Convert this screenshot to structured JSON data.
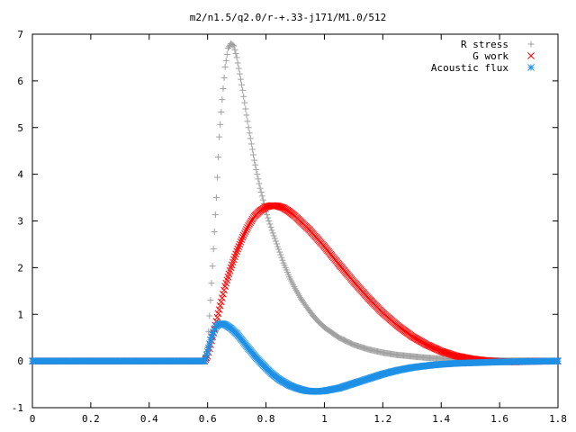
{
  "chart_data": {
    "type": "scatter",
    "title": "m2/n1.5/q2.0/r-+.33-j171/M1.0/512",
    "xlabel": "",
    "ylabel": "",
    "xlim": [
      0,
      1.8
    ],
    "ylim": [
      -1,
      7
    ],
    "x_ticks": [
      "0",
      "0.2",
      "0.4",
      "0.6",
      "0.8",
      "1",
      "1.2",
      "1.4",
      "1.6",
      "1.8"
    ],
    "y_ticks": [
      "-1",
      "0",
      "1",
      "2",
      "3",
      "4",
      "5",
      "6",
      "7"
    ],
    "grid": false,
    "legend_position": "top-right",
    "series": [
      {
        "name": "R stress",
        "marker": "+",
        "color": "#a0a0a0",
        "points": [
          [
            0,
            0
          ],
          [
            0.2,
            0
          ],
          [
            0.4,
            0
          ],
          [
            0.59,
            0
          ],
          [
            0.6,
            0.3
          ],
          [
            0.61,
            1.3
          ],
          [
            0.62,
            2.4
          ],
          [
            0.63,
            3.5
          ],
          [
            0.64,
            4.8
          ],
          [
            0.65,
            5.6
          ],
          [
            0.66,
            6.3
          ],
          [
            0.67,
            6.7
          ],
          [
            0.68,
            6.8
          ],
          [
            0.69,
            6.75
          ],
          [
            0.7,
            6.5
          ],
          [
            0.72,
            5.8
          ],
          [
            0.74,
            5.0
          ],
          [
            0.76,
            4.3
          ],
          [
            0.78,
            3.7
          ],
          [
            0.8,
            3.2
          ],
          [
            0.82,
            2.8
          ],
          [
            0.84,
            2.45
          ],
          [
            0.86,
            2.1
          ],
          [
            0.88,
            1.8
          ],
          [
            0.9,
            1.55
          ],
          [
            0.92,
            1.33
          ],
          [
            0.94,
            1.15
          ],
          [
            0.96,
            0.98
          ],
          [
            0.98,
            0.84
          ],
          [
            1.0,
            0.72
          ],
          [
            1.05,
            0.5
          ],
          [
            1.1,
            0.35
          ],
          [
            1.15,
            0.25
          ],
          [
            1.2,
            0.18
          ],
          [
            1.25,
            0.13
          ],
          [
            1.3,
            0.1
          ],
          [
            1.35,
            0.07
          ],
          [
            1.4,
            0.05
          ],
          [
            1.5,
            0.03
          ],
          [
            1.6,
            0.01
          ],
          [
            1.7,
            0.01
          ],
          [
            1.8,
            0
          ]
        ]
      },
      {
        "name": "G work",
        "marker": "x",
        "color": "#ff0000",
        "points": [
          [
            0,
            0
          ],
          [
            0.2,
            0
          ],
          [
            0.4,
            0
          ],
          [
            0.59,
            0
          ],
          [
            0.6,
            0.1
          ],
          [
            0.62,
            0.6
          ],
          [
            0.64,
            1.1
          ],
          [
            0.66,
            1.6
          ],
          [
            0.68,
            2.0
          ],
          [
            0.7,
            2.35
          ],
          [
            0.72,
            2.65
          ],
          [
            0.74,
            2.9
          ],
          [
            0.76,
            3.1
          ],
          [
            0.78,
            3.22
          ],
          [
            0.8,
            3.3
          ],
          [
            0.82,
            3.33
          ],
          [
            0.84,
            3.32
          ],
          [
            0.86,
            3.28
          ],
          [
            0.88,
            3.2
          ],
          [
            0.9,
            3.1
          ],
          [
            0.95,
            2.8
          ],
          [
            1.0,
            2.45
          ],
          [
            1.05,
            2.07
          ],
          [
            1.1,
            1.7
          ],
          [
            1.15,
            1.35
          ],
          [
            1.2,
            1.03
          ],
          [
            1.25,
            0.76
          ],
          [
            1.3,
            0.53
          ],
          [
            1.35,
            0.35
          ],
          [
            1.4,
            0.21
          ],
          [
            1.45,
            0.11
          ],
          [
            1.5,
            0.05
          ],
          [
            1.55,
            0.01
          ],
          [
            1.6,
            -0.01
          ],
          [
            1.65,
            -0.02
          ],
          [
            1.7,
            -0.01
          ],
          [
            1.8,
            0
          ]
        ]
      },
      {
        "name": "Acoustic flux",
        "marker": "*",
        "color": "#1e90e6",
        "points": [
          [
            0,
            0
          ],
          [
            0.2,
            0
          ],
          [
            0.4,
            0
          ],
          [
            0.59,
            0
          ],
          [
            0.6,
            0.2
          ],
          [
            0.61,
            0.45
          ],
          [
            0.62,
            0.62
          ],
          [
            0.63,
            0.74
          ],
          [
            0.64,
            0.79
          ],
          [
            0.65,
            0.8
          ],
          [
            0.66,
            0.78
          ],
          [
            0.68,
            0.7
          ],
          [
            0.7,
            0.58
          ],
          [
            0.72,
            0.43
          ],
          [
            0.74,
            0.27
          ],
          [
            0.76,
            0.12
          ],
          [
            0.78,
            -0.02
          ],
          [
            0.8,
            -0.15
          ],
          [
            0.82,
            -0.27
          ],
          [
            0.84,
            -0.37
          ],
          [
            0.86,
            -0.45
          ],
          [
            0.88,
            -0.52
          ],
          [
            0.9,
            -0.57
          ],
          [
            0.92,
            -0.61
          ],
          [
            0.94,
            -0.64
          ],
          [
            0.96,
            -0.65
          ],
          [
            0.98,
            -0.65
          ],
          [
            1.0,
            -0.64
          ],
          [
            1.05,
            -0.58
          ],
          [
            1.1,
            -0.48
          ],
          [
            1.15,
            -0.38
          ],
          [
            1.2,
            -0.28
          ],
          [
            1.25,
            -0.2
          ],
          [
            1.3,
            -0.14
          ],
          [
            1.35,
            -0.1
          ],
          [
            1.4,
            -0.07
          ],
          [
            1.45,
            -0.05
          ],
          [
            1.5,
            -0.04
          ],
          [
            1.6,
            -0.02
          ],
          [
            1.7,
            -0.01
          ],
          [
            1.8,
            0
          ]
        ]
      }
    ]
  }
}
